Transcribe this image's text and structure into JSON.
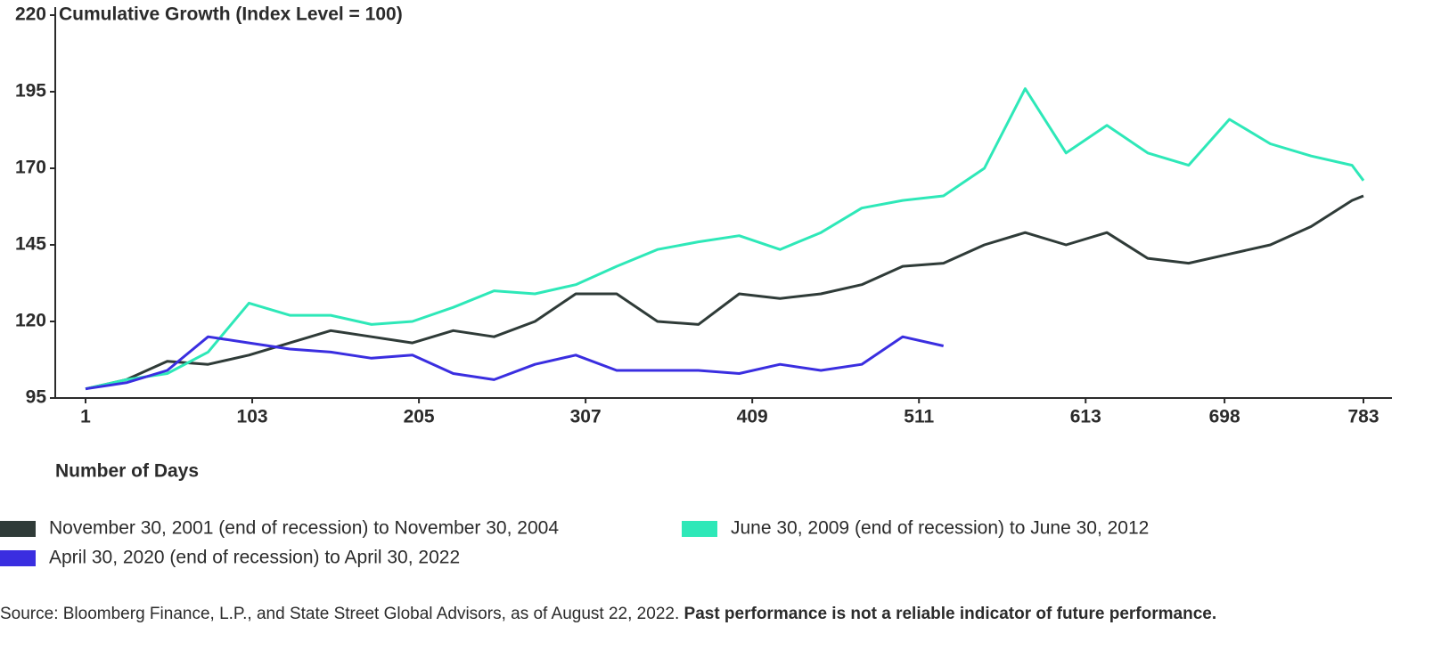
{
  "chart_data": {
    "type": "line",
    "title": "Cumulative Growth (Index Level = 100)",
    "x_label": "Number of Days",
    "x": [
      1,
      26,
      51,
      76,
      101,
      126,
      151,
      176,
      201,
      226,
      251,
      276,
      301,
      326,
      351,
      376,
      401,
      426,
      451,
      476,
      501,
      526,
      551,
      576,
      601,
      626,
      651,
      676,
      701,
      726,
      751,
      776,
      783
    ],
    "series": [
      {
        "name": "November 30, 2001 (end of recession) to November 30, 2004",
        "color": "#2f3b38",
        "values": [
          98,
          101,
          107,
          106,
          109,
          113,
          117,
          115,
          113,
          117,
          115,
          120,
          129,
          129,
          120,
          119,
          129,
          127.5,
          129,
          132,
          138,
          139,
          145,
          149,
          145,
          149,
          140.6,
          139,
          142,
          145,
          151,
          159.5,
          161
        ]
      },
      {
        "name": "June 30, 2009 (end of recession) to June 30, 2012",
        "color": "#2ee8b8",
        "values": [
          98,
          101,
          103,
          110,
          126,
          122,
          122,
          119,
          120,
          124.6,
          130,
          129,
          132,
          138,
          143.5,
          146,
          148,
          143.5,
          149,
          157,
          159.5,
          161,
          170,
          196,
          175,
          184,
          175,
          171,
          186,
          178,
          174,
          171,
          166
        ]
      },
      {
        "name": "April 30, 2020 (end of recession) to April 30, 2022",
        "color": "#3a2ee0",
        "values": [
          98,
          100,
          104,
          115,
          113,
          111,
          110,
          108,
          109,
          103,
          101,
          106,
          109,
          104,
          104,
          104,
          103,
          106,
          104,
          106,
          115,
          112,
          null,
          null,
          null,
          null,
          null,
          null,
          null,
          null,
          null,
          null,
          null
        ]
      }
    ],
    "xlim": [
      1,
      783
    ],
    "xticks": [
      1,
      103,
      205,
      307,
      409,
      511,
      613,
      698,
      783
    ],
    "ylim": [
      95,
      220
    ],
    "yticks": [
      95,
      120,
      145,
      170,
      195,
      220
    ],
    "grid": false,
    "source": "Source: Bloomberg Finance, L.P., and State Street Global Advisors, as of August 22, 2022. ",
    "source_bold": "Past performance is not a reliable indicator of future performance."
  }
}
